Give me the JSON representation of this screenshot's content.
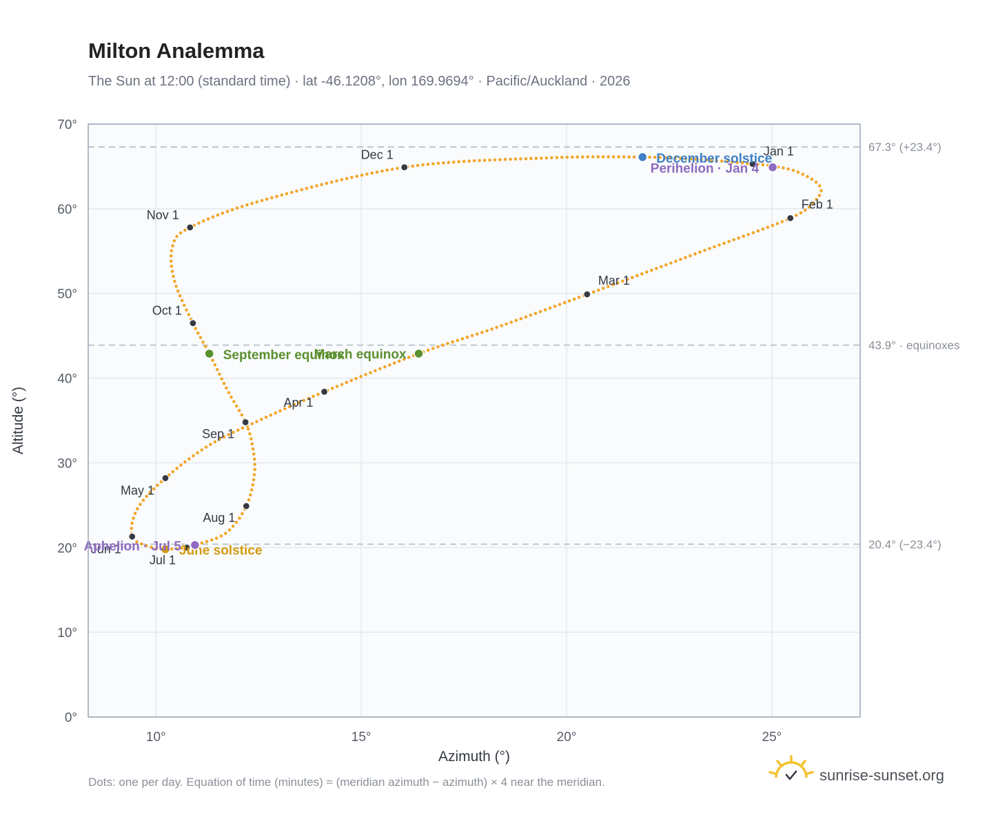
{
  "title": "Milton Analemma",
  "subtitle": "The Sun at 12:00 (standard time) · lat -46.1208°, lon 169.9694° · Pacific/Auckland · 2026",
  "footnote": "Dots: one per day. Equation of time (minutes) ≈ (meridian azimuth − azimuth) × 4 near the meridian.",
  "brand": "sunrise-sunset.org",
  "colors": {
    "path": "#f2a62a",
    "month_dot": "#353a42",
    "equinox": "#5b8f2f",
    "december_solstice": "#3f7fc4",
    "june_solstice": "#d49a0e",
    "apsis": "#8e6bbf",
    "grid": "#e5e8ee",
    "plot_bg": "#f9fbfd",
    "frame": "#9aa5b4",
    "ref_line": "#b8c0c8"
  },
  "chart_data": {
    "type": "scatter",
    "xlabel": "Azimuth (°)",
    "ylabel": "Altitude (°)",
    "xlim": [
      8.35,
      27.15
    ],
    "ylim": [
      0,
      70
    ],
    "x_ticks": [
      10,
      15,
      20,
      25
    ],
    "y_ticks": [
      0,
      10,
      20,
      30,
      40,
      50,
      60,
      70
    ],
    "x_tick_labels": [
      "10°",
      "15°",
      "20°",
      "25°"
    ],
    "y_tick_labels": [
      "0°",
      "10°",
      "20°",
      "30°",
      "40°",
      "50°",
      "60°",
      "70°"
    ],
    "grid": true,
    "reference_lines": [
      {
        "y": 67.3,
        "label": "67.3° (+23.4°)"
      },
      {
        "y": 43.9,
        "label": "43.9° · equinoxes"
      },
      {
        "y": 20.4,
        "label": "20.4° (−23.4°)"
      }
    ],
    "path_anchors": [
      {
        "x": 24.53,
        "y": 65.3
      },
      {
        "x": 24.95,
        "y": 65.1
      },
      {
        "x": 25.6,
        "y": 64.4
      },
      {
        "x": 26.15,
        "y": 62.8
      },
      {
        "x": 26.1,
        "y": 61.2
      },
      {
        "x": 25.45,
        "y": 58.9
      },
      {
        "x": 23.2,
        "y": 54.8
      },
      {
        "x": 20.5,
        "y": 49.9
      },
      {
        "x": 18.3,
        "y": 46.0
      },
      {
        "x": 16.4,
        "y": 42.9
      },
      {
        "x": 14.1,
        "y": 38.4
      },
      {
        "x": 12.6,
        "y": 35.2
      },
      {
        "x": 11.3,
        "y": 32.1
      },
      {
        "x": 10.23,
        "y": 28.2
      },
      {
        "x": 9.55,
        "y": 24.6
      },
      {
        "x": 9.42,
        "y": 21.3
      },
      {
        "x": 9.85,
        "y": 20.1
      },
      {
        "x": 10.23,
        "y": 19.8
      },
      {
        "x": 10.75,
        "y": 20.0
      },
      {
        "x": 10.95,
        "y": 20.3
      },
      {
        "x": 11.7,
        "y": 21.7
      },
      {
        "x": 12.2,
        "y": 24.9
      },
      {
        "x": 12.4,
        "y": 28.8
      },
      {
        "x": 12.35,
        "y": 32.0
      },
      {
        "x": 12.18,
        "y": 34.8
      },
      {
        "x": 11.75,
        "y": 38.5
      },
      {
        "x": 11.3,
        "y": 42.9
      },
      {
        "x": 10.9,
        "y": 46.5
      },
      {
        "x": 10.45,
        "y": 51.5
      },
      {
        "x": 10.4,
        "y": 55.5
      },
      {
        "x": 10.83,
        "y": 57.8
      },
      {
        "x": 12.6,
        "y": 61.0
      },
      {
        "x": 16.05,
        "y": 64.9
      },
      {
        "x": 19.5,
        "y": 66.0
      },
      {
        "x": 21.85,
        "y": 66.1
      },
      {
        "x": 23.3,
        "y": 65.8
      },
      {
        "x": 24.53,
        "y": 65.3
      }
    ],
    "month_markers": [
      {
        "label": "Jan 1",
        "x": 24.53,
        "y": 65.3,
        "anchor": "start",
        "dx": 16,
        "dy": -12
      },
      {
        "label": "Feb 1",
        "x": 25.45,
        "y": 58.9,
        "anchor": "start",
        "dx": 16,
        "dy": -14
      },
      {
        "label": "Mar 1",
        "x": 20.5,
        "y": 49.9,
        "anchor": "start",
        "dx": 16,
        "dy": -14
      },
      {
        "label": "Apr 1",
        "x": 14.1,
        "y": 38.4,
        "anchor": "end",
        "dx": -16,
        "dy": 22
      },
      {
        "label": "May 1",
        "x": 10.23,
        "y": 28.2,
        "anchor": "end",
        "dx": -16,
        "dy": 24
      },
      {
        "label": "Jun 1",
        "x": 9.42,
        "y": 21.3,
        "anchor": "end",
        "dx": -16,
        "dy": 24
      },
      {
        "label": "Jul 1",
        "x": 10.75,
        "y": 20.0,
        "anchor": "end",
        "dx": -16,
        "dy": 24
      },
      {
        "label": "Aug 1",
        "x": 12.2,
        "y": 24.9,
        "anchor": "end",
        "dx": -16,
        "dy": 23
      },
      {
        "label": "Sep 1",
        "x": 12.18,
        "y": 34.8,
        "anchor": "end",
        "dx": -16,
        "dy": 23
      },
      {
        "label": "Oct 1",
        "x": 10.9,
        "y": 46.5,
        "anchor": "end",
        "dx": -16,
        "dy": -12
      },
      {
        "label": "Nov 1",
        "x": 10.83,
        "y": 57.8,
        "anchor": "end",
        "dx": -16,
        "dy": -12
      },
      {
        "label": "Dec 1",
        "x": 16.05,
        "y": 64.9,
        "anchor": "end",
        "dx": -16,
        "dy": -12
      }
    ],
    "events": [
      {
        "label": "March equinox",
        "x": 16.4,
        "y": 42.9,
        "color_key": "equinox",
        "anchor": "end",
        "dx": -18,
        "dy": 7
      },
      {
        "label": "September equinox",
        "x": 11.3,
        "y": 42.9,
        "color_key": "equinox",
        "anchor": "start",
        "dx": 20,
        "dy": 8
      },
      {
        "label": "December solstice",
        "x": 21.85,
        "y": 66.1,
        "color_key": "december_solstice",
        "anchor": "start",
        "dx": 20,
        "dy": 8
      },
      {
        "label": "June solstice",
        "x": 10.23,
        "y": 19.8,
        "color_key": "june_solstice",
        "anchor": "start",
        "dx": 20,
        "dy": 8
      },
      {
        "label": "Perihelion · Jan 4",
        "x": 25.02,
        "y": 64.9,
        "color_key": "apsis",
        "anchor": "end",
        "dx": -20,
        "dy": 8
      },
      {
        "label": "Aphelion · Jul 5",
        "x": 10.95,
        "y": 20.3,
        "color_key": "apsis",
        "anchor": "end",
        "dx": -20,
        "dy": 8
      }
    ]
  }
}
